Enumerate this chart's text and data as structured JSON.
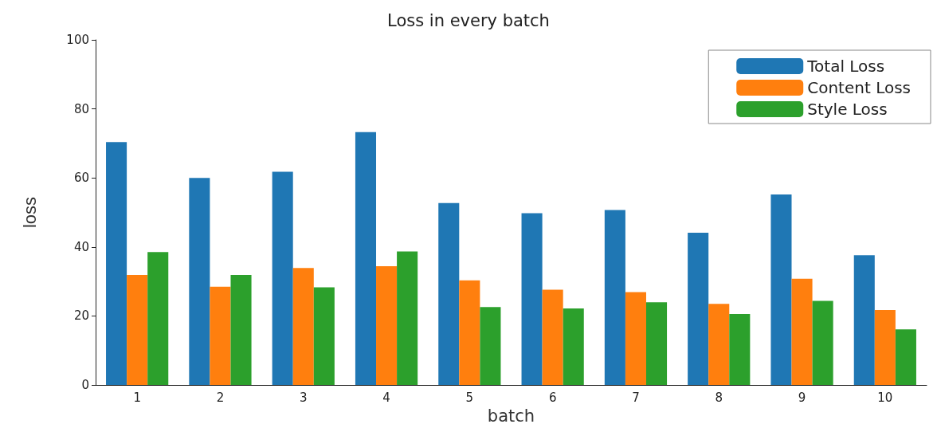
{
  "chart_data": {
    "type": "bar",
    "title": "Loss in every batch",
    "xlabel": "batch",
    "ylabel": "loss",
    "categories": [
      "1",
      "2",
      "3",
      "4",
      "5",
      "6",
      "7",
      "8",
      "9",
      "10"
    ],
    "series": [
      {
        "name": "Total Loss",
        "color": "#1f77b4",
        "values": [
          70.4,
          60.0,
          61.8,
          73.3,
          52.7,
          49.8,
          50.7,
          44.1,
          55.2,
          37.6
        ]
      },
      {
        "name": "Content Loss",
        "color": "#ff7f0e",
        "values": [
          31.9,
          28.5,
          33.9,
          34.4,
          30.3,
          27.6,
          26.9,
          23.5,
          30.8,
          21.7
        ]
      },
      {
        "name": "Style Loss",
        "color": "#2ca02c",
        "values": [
          38.5,
          31.9,
          28.3,
          38.7,
          22.6,
          22.2,
          24.0,
          20.6,
          24.4,
          16.1
        ]
      }
    ],
    "ylim": [
      0,
      100
    ],
    "yticks": [
      0,
      20,
      40,
      60,
      80,
      100
    ],
    "grid": false,
    "legend": "top right"
  }
}
